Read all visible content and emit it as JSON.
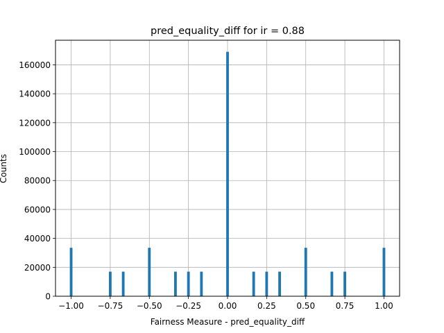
{
  "chart_data": {
    "type": "bar",
    "title": "pred_equality_diff for ir = 0.88",
    "xlabel": "Fairness Measure - pred_equality_diff",
    "ylabel": "Counts",
    "xlim": [
      -1.1,
      1.1
    ],
    "ylim": [
      0,
      177000
    ],
    "grid": true,
    "bar_color": "#1f77b4",
    "bin_width": 0.02,
    "x_ticks": [
      -1.0,
      -0.75,
      -0.5,
      -0.25,
      0.0,
      0.25,
      0.5,
      0.75,
      1.0
    ],
    "x_tick_labels": [
      "−1.00",
      "−0.75",
      "−0.50",
      "−0.25",
      "0.00",
      "0.25",
      "0.50",
      "0.75",
      "1.00"
    ],
    "y_ticks": [
      0,
      20000,
      40000,
      60000,
      80000,
      100000,
      120000,
      140000,
      160000
    ],
    "y_tick_labels": [
      "0",
      "20000",
      "40000",
      "60000",
      "80000",
      "100000",
      "120000",
      "140000",
      "160000"
    ],
    "bars": [
      {
        "x": -1.0,
        "count": 33500
      },
      {
        "x": -0.75,
        "count": 17000
      },
      {
        "x": -0.667,
        "count": 17000
      },
      {
        "x": -0.5,
        "count": 33500
      },
      {
        "x": -0.333,
        "count": 17000
      },
      {
        "x": -0.25,
        "count": 17000
      },
      {
        "x": -0.167,
        "count": 17000
      },
      {
        "x": 0.0,
        "count": 169000
      },
      {
        "x": 0.167,
        "count": 17000
      },
      {
        "x": 0.25,
        "count": 17000
      },
      {
        "x": 0.333,
        "count": 17000
      },
      {
        "x": 0.5,
        "count": 33500
      },
      {
        "x": 0.667,
        "count": 17000
      },
      {
        "x": 0.75,
        "count": 17000
      },
      {
        "x": 1.0,
        "count": 33500
      }
    ]
  }
}
